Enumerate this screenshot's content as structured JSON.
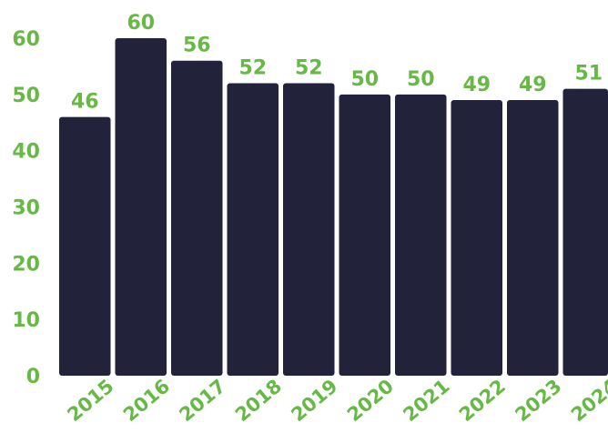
{
  "chart_data": {
    "type": "bar",
    "categories": [
      "2015",
      "2016",
      "2017",
      "2018",
      "2019",
      "2020",
      "2021",
      "2022",
      "2023",
      "2024"
    ],
    "values": [
      46,
      60,
      56,
      52,
      52,
      50,
      50,
      49,
      49,
      51
    ],
    "ylim": [
      0,
      60
    ],
    "yticks": [
      0,
      10,
      20,
      30,
      40,
      50,
      60
    ],
    "grid": false,
    "legend": "none",
    "data_labels": true,
    "colors": {
      "bar": "#22223a",
      "text": "#67b946"
    }
  }
}
